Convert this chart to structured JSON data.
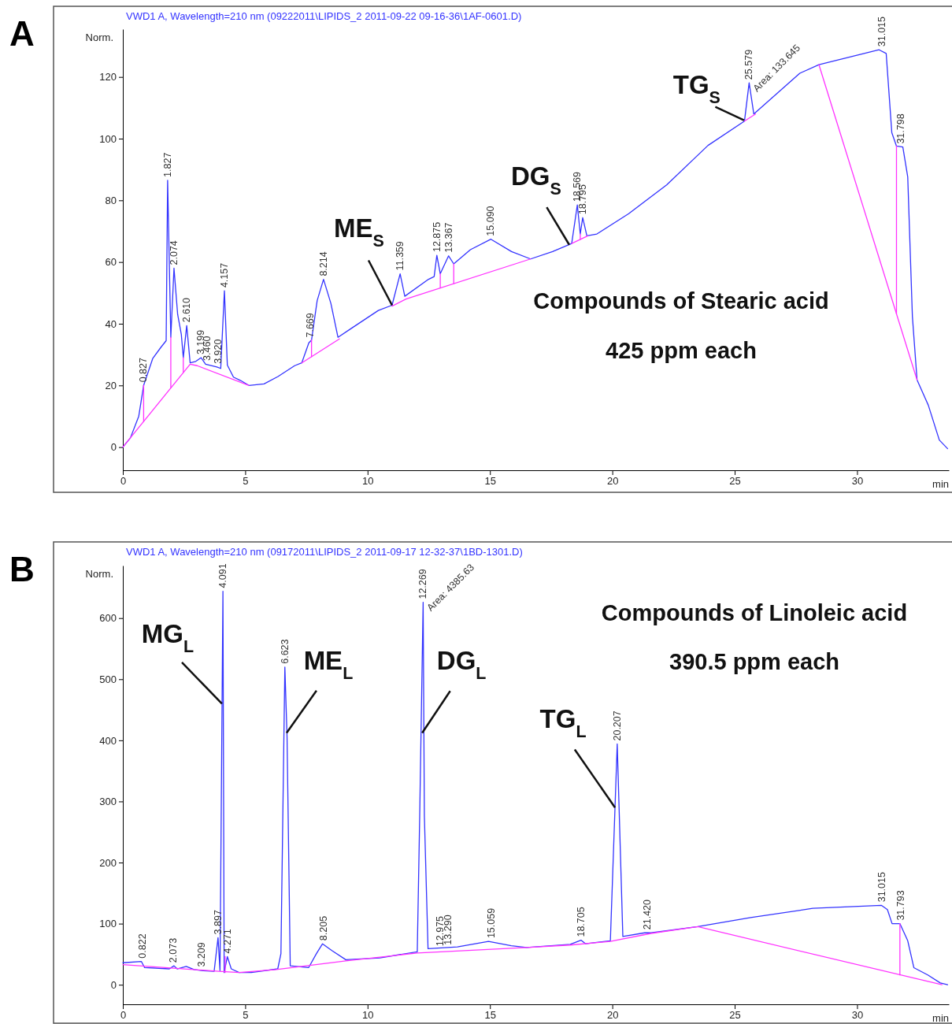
{
  "chart_data": [
    {
      "type": "line",
      "title": "A",
      "subtitle": "VWD1 A, Wavelength=210 nm (09222011\\LIPIDS_2 2011-09-22 09-16-36\\1AF-0601.D)",
      "xlabel": "min",
      "ylabel": "Norm.",
      "xlim": [
        0,
        33.75
      ],
      "ylim": [
        -7.5,
        135.5
      ],
      "xticks": [
        0,
        5,
        10,
        15,
        20,
        25,
        30
      ],
      "yticks": [
        0,
        20,
        40,
        60,
        80,
        100,
        120
      ],
      "marker": "none",
      "line_style": "solid",
      "series": [
        {
          "color": "#3333ff",
          "x": [
            0,
            0.31,
            0.65,
            0.85,
            1.22,
            1.56,
            1.77,
            1.83,
            1.96,
            2.09,
            2.24,
            2.39,
            2.47,
            2.61,
            2.75,
            2.98,
            3.2,
            3.38,
            3.84,
            4.0,
            4.15,
            4.27,
            4.52,
            4.81,
            5.15,
            5.77,
            6.34,
            7.02,
            7.31,
            7.6,
            7.71,
            7.94,
            8.2,
            8.5,
            8.79,
            9.3,
            10.44,
            11.0,
            11.33,
            11.52,
            12.49,
            12.72,
            12.83,
            12.97,
            13.31,
            13.52,
            14.2,
            15.04,
            15.88,
            16.66,
            17.56,
            18.34,
            18.57,
            18.69,
            18.79,
            18.96,
            19.37,
            20.67,
            22.22,
            23.91,
            25.4,
            25.59,
            25.78,
            27.66,
            28.44,
            30.9,
            31.19,
            31.42,
            31.61,
            31.87,
            32.07,
            32.26,
            32.45,
            32.91,
            33.36,
            33.7
          ],
          "values": [
            0,
            3,
            10,
            20,
            28.7,
            32.4,
            34.5,
            86.5,
            35.6,
            58,
            43,
            36.5,
            29,
            39.4,
            27.3,
            27.8,
            29,
            26.9,
            26,
            25.5,
            50.7,
            26.6,
            22.7,
            21.6,
            20,
            20.5,
            22.9,
            26.4,
            27.3,
            33.8,
            34.7,
            47.5,
            54.4,
            46.6,
            35.6,
            38.3,
            44.3,
            46,
            56.2,
            48.9,
            54.4,
            55.3,
            62.2,
            56.2,
            62,
            59.4,
            64,
            67.4,
            63.4,
            61,
            63.4,
            66,
            78.5,
            69.1,
            74.4,
            68.5,
            69.1,
            75.7,
            85,
            97.8,
            105.7,
            118.1,
            108,
            121.2,
            124,
            128.8,
            127.6,
            101.9,
            97.6,
            97.3,
            87.6,
            42.4,
            21.8,
            13.6,
            2.3,
            -0.5
          ]
        },
        {
          "color": "#ff33ff",
          "x": [
            0,
            2.75,
            3.04,
            5.15
          ],
          "values": [
            0,
            26.9,
            26.4,
            20
          ]
        },
        {
          "color": "#ff33ff",
          "x": [
            7.31,
            8.85
          ],
          "values": [
            27.3,
            35.1
          ]
        },
        {
          "color": "#ff33ff",
          "x": [
            11.0,
            11.57,
            16.66
          ],
          "values": [
            45.7,
            48,
            61
          ]
        },
        {
          "color": "#ff33ff",
          "x": [
            18.34,
            19.0
          ],
          "values": [
            66,
            68.5
          ]
        },
        {
          "color": "#ff33ff",
          "x": [
            25.4,
            25.85
          ],
          "values": [
            105.7,
            108
          ]
        },
        {
          "color": "#ff33ff",
          "x": [
            28.44,
            32.45
          ],
          "values": [
            124,
            21.8
          ]
        },
        {
          "color": "#ff33ff",
          "x": [
            0.85,
            0.85
          ],
          "values": [
            8.3,
            20
          ]
        },
        {
          "color": "#ff33ff",
          "x": [
            1.96,
            1.96
          ],
          "values": [
            19.2,
            35.6
          ]
        },
        {
          "color": "#ff33ff",
          "x": [
            2.47,
            2.47
          ],
          "values": [
            24.2,
            29
          ]
        },
        {
          "color": "#ff33ff",
          "x": [
            7.71,
            7.71
          ],
          "values": [
            29.3,
            34.7
          ]
        },
        {
          "color": "#ff33ff",
          "x": [
            12.97,
            12.97
          ],
          "values": [
            51.6,
            56.2
          ]
        },
        {
          "color": "#ff33ff",
          "x": [
            13.52,
            13.52
          ],
          "values": [
            53,
            59.4
          ]
        },
        {
          "color": "#ff33ff",
          "x": [
            18.69,
            18.69
          ],
          "values": [
            67.3,
            69.1
          ]
        },
        {
          "color": "#ff33ff",
          "x": [
            31.61,
            31.61
          ],
          "values": [
            43.2,
            97.6
          ]
        }
      ],
      "annotations": [
        {
          "text": "0.827",
          "x": 0.85,
          "y": 20
        },
        {
          "text": "1.827",
          "x": 1.83,
          "y": 86.5
        },
        {
          "text": "2.074",
          "x": 2.09,
          "y": 58
        },
        {
          "text": "2.610",
          "x": 2.61,
          "y": 39.4
        },
        {
          "text": "3.199",
          "x": 3.2,
          "y": 29
        },
        {
          "text": "3.460",
          "x": 3.45,
          "y": 27
        },
        {
          "text": "3.920",
          "x": 3.9,
          "y": 26
        },
        {
          "text": "4.157",
          "x": 4.15,
          "y": 50.7
        },
        {
          "text": "7.669",
          "x": 7.67,
          "y": 34.5
        },
        {
          "text": "8.214",
          "x": 8.2,
          "y": 54.4
        },
        {
          "text": "11.359",
          "x": 11.33,
          "y": 56.2
        },
        {
          "text": "12.875",
          "x": 12.83,
          "y": 62.2
        },
        {
          "text": "13.367",
          "x": 13.31,
          "y": 62
        },
        {
          "text": "15.090",
          "x": 15.04,
          "y": 67.4
        },
        {
          "text": "18.569",
          "x": 18.57,
          "y": 78.5
        },
        {
          "text": "18.795",
          "x": 18.79,
          "y": 74.4
        },
        {
          "text": "25.579",
          "x": 25.59,
          "y": 118.1
        },
        {
          "text": "Area: 133.645",
          "x": 25.59,
          "y": 118.1
        },
        {
          "text": "31.015",
          "x": 31.0,
          "y": 128.8
        },
        {
          "text": "31.798",
          "x": 31.8,
          "y": 97.3
        },
        {
          "text": "ME$_{S}$",
          "x": 11.0,
          "y": 46
        },
        {
          "text": "DG$_{S}$",
          "x": 18.24,
          "y": 65.6
        },
        {
          "text": "TG$_{S}$",
          "x": 25.38,
          "y": 106
        },
        "Compounds of Stearic acid",
        "425 ppm each"
      ]
    },
    {
      "type": "line",
      "title": "B",
      "subtitle": "VWD1 A, Wavelength=210 nm (09172011\\LIPIDS_2 2011-09-17 12-32-37\\1BD-1301.D)",
      "xlabel": "min",
      "ylabel": "Norm.",
      "xlim": [
        0,
        33.75
      ],
      "ylim": [
        -32,
        686
      ],
      "xticks": [
        0,
        5,
        10,
        15,
        20,
        25,
        30
      ],
      "yticks": [
        0,
        100,
        200,
        300,
        400,
        500,
        600
      ],
      "marker": "none",
      "line_style": "solid",
      "series": [
        {
          "color": "#3333ff",
          "x": [
            0,
            0.76,
            0.89,
            1.9,
            2.09,
            2.22,
            2.59,
            2.91,
            3.29,
            3.73,
            3.89,
            3.97,
            4.09,
            4.14,
            4.27,
            4.43,
            4.75,
            5.25,
            6.33,
            6.46,
            6.62,
            6.71,
            6.84,
            7.59,
            7.91,
            8.16,
            8.54,
            9.11,
            10.5,
            12.03,
            12.13,
            12.27,
            12.32,
            12.47,
            13.67,
            14.94,
            15.87,
            16.5,
            18.28,
            18.72,
            18.91,
            19.92,
            20.2,
            20.43,
            21.32,
            21.58,
            23.49,
            25.65,
            28.19,
            30.99,
            31.24,
            31.43,
            31.75,
            32.07,
            32.32,
            32.89,
            33.4,
            33.7
          ],
          "values": [
            36,
            38,
            28,
            26,
            31,
            26,
            30,
            25,
            23,
            22,
            77,
            23,
            644,
            20,
            46,
            26,
            20,
            20,
            26,
            51,
            520,
            405,
            31,
            28,
            51,
            67,
            56,
            41,
            44,
            54,
            277,
            626,
            277,
            59,
            62,
            71,
            64,
            61,
            66,
            73,
            67,
            72,
            394,
            79,
            85,
            85,
            95,
            110,
            125,
            130,
            123,
            100,
            100,
            72,
            28,
            16,
            3,
            0
          ]
        },
        {
          "color": "#ff33ff",
          "x": [
            0,
            3.92,
            4.75,
            6.27,
            9.11,
            12.03,
            16.5,
            18.28,
            19.92,
            21.58,
            23.49,
            33.47
          ],
          "values": [
            33,
            22,
            20,
            25,
            39,
            52,
            61,
            65,
            71,
            84,
            95,
            0
          ]
        },
        {
          "color": "#ff33ff",
          "x": [
            4.18,
            4.18
          ],
          "values": [
            20,
            46
          ]
        },
        {
          "color": "#ff33ff",
          "x": [
            31.75,
            31.75
          ],
          "values": [
            16,
            100
          ]
        }
      ],
      "annotations": [
        {
          "text": "0.822",
          "x": 0.82,
          "y": 38
        },
        {
          "text": "2.073",
          "x": 2.07,
          "y": 31
        },
        {
          "text": "3.209",
          "x": 3.21,
          "y": 24
        },
        {
          "text": "3.897",
          "x": 3.89,
          "y": 77
        },
        {
          "text": "4.091",
          "x": 4.09,
          "y": 644
        },
        {
          "text": "4.271",
          "x": 4.27,
          "y": 46
        },
        {
          "text": "6.623",
          "x": 6.62,
          "y": 520
        },
        {
          "text": "8.205",
          "x": 8.2,
          "y": 67
        },
        {
          "text": "12.269",
          "x": 12.27,
          "y": 626
        },
        {
          "text": "Area: 4385.63",
          "x": 12.27,
          "y": 626
        },
        {
          "text": "12.975",
          "x": 12.97,
          "y": 58
        },
        {
          "text": "13.290",
          "x": 13.29,
          "y": 60
        },
        {
          "text": "15.059",
          "x": 15.06,
          "y": 71
        },
        {
          "text": "18.705",
          "x": 18.72,
          "y": 73
        },
        {
          "text": "20.207",
          "x": 20.2,
          "y": 394
        },
        {
          "text": "21.420",
          "x": 21.42,
          "y": 85
        },
        {
          "text": "31.015",
          "x": 31.0,
          "y": 130
        },
        {
          "text": "31.793",
          "x": 31.79,
          "y": 100
        },
        {
          "text": "MG$_{L}$",
          "x": 4.05,
          "y": 460
        },
        {
          "text": "ME$_{L}$",
          "x": 6.69,
          "y": 412
        },
        {
          "text": "DG$_{L}$",
          "x": 12.23,
          "y": 412
        },
        {
          "text": "TG$_{L}$",
          "x": 20.11,
          "y": 290
        },
        "Compounds of Linoleic acid",
        "390.5 ppm each"
      ]
    }
  ]
}
